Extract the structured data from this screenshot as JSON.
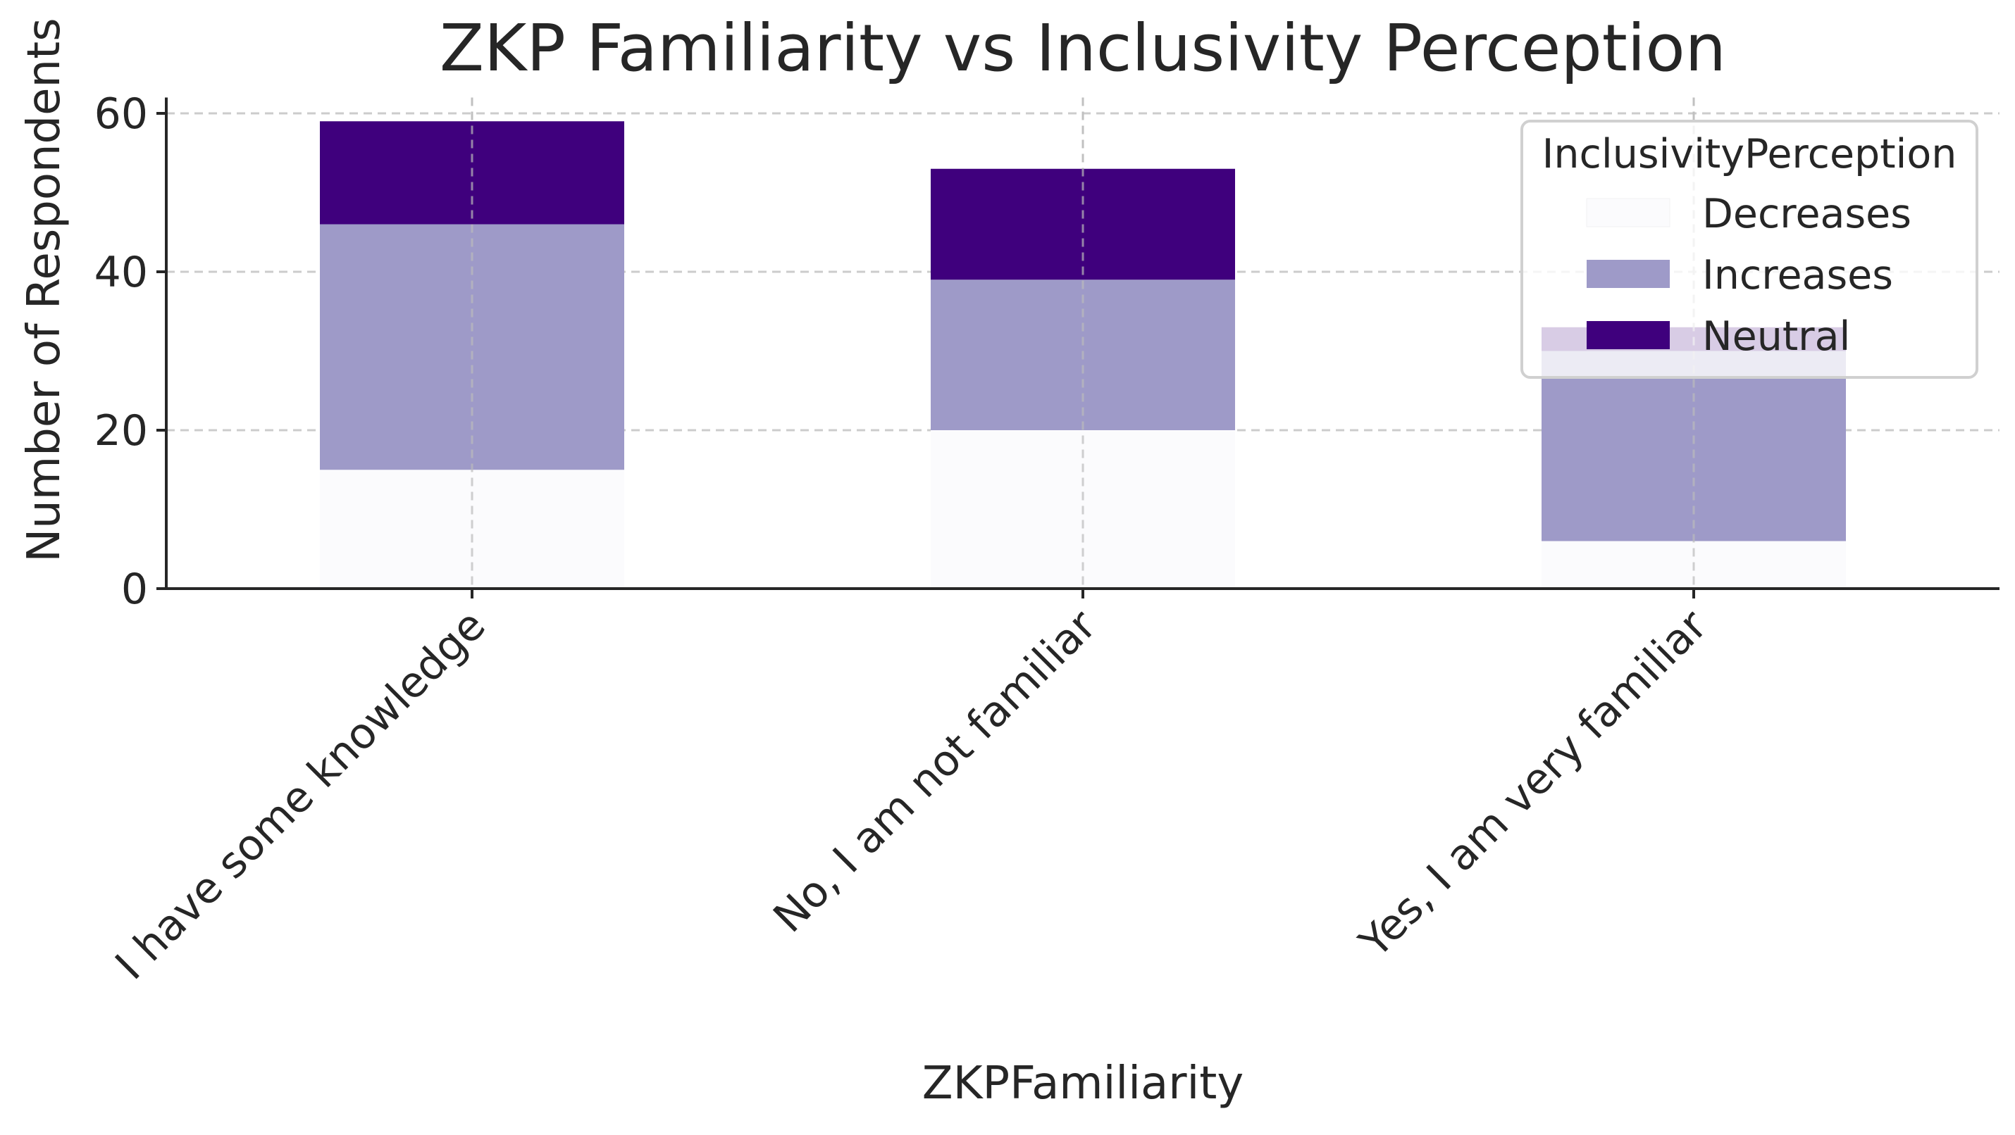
{
  "chart_data": {
    "type": "bar",
    "stacked": true,
    "title": "ZKP Familiarity vs Inclusivity Perception",
    "xlabel": "ZKPFamiliarity",
    "ylabel": "Number of Respondents",
    "categories": [
      "I have some knowledge",
      "No, I am not familiar",
      "Yes, I am very familiar"
    ],
    "series": [
      {
        "name": "Decreases",
        "values": [
          15,
          20,
          6
        ],
        "color": "#fbfbfd"
      },
      {
        "name": "Increases",
        "values": [
          31,
          19,
          24
        ],
        "color": "#9e9ac8"
      },
      {
        "name": "Neutral",
        "values": [
          13,
          14,
          3
        ],
        "color": "#3f007d"
      }
    ],
    "ylim": [
      0,
      62
    ],
    "yticks": [
      0,
      20,
      40,
      60
    ],
    "grid": true,
    "legend": {
      "title": "InclusivityPerception",
      "position": "top-right"
    }
  }
}
